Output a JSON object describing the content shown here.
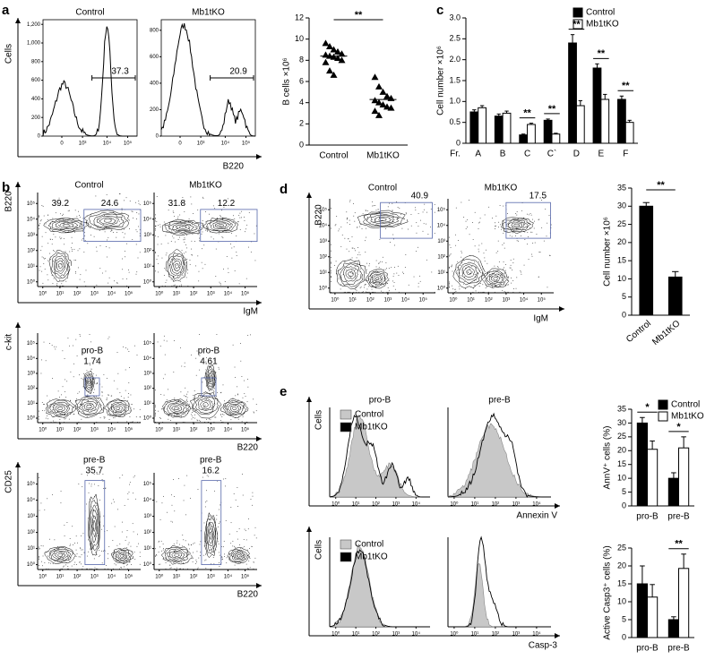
{
  "panel_labels": [
    "a",
    "b",
    "c",
    "d",
    "e"
  ],
  "flow": {
    "log_ticks": [
      {
        "value": 1,
        "label": "10⁰"
      },
      {
        "value": 10,
        "label": "10¹"
      },
      {
        "value": 100,
        "label": "10²"
      },
      {
        "value": 1000,
        "label": "10³"
      },
      {
        "value": 10000,
        "label": "10⁴"
      },
      {
        "value": 100000,
        "label": "10⁵"
      }
    ],
    "a": {
      "x_label": "B220",
      "y_label": "Cells",
      "xticks": [
        0,
        {
          "value": 1000,
          "label": "10³"
        },
        {
          "value": 10000,
          "label": "10⁴"
        },
        {
          "value": 100000,
          "label": "10⁵"
        }
      ],
      "plots": [
        {
          "title": "Control",
          "ylim": [
            0,
            1250
          ],
          "yticks": [
            0,
            200,
            400,
            600,
            800,
            {
              "value": 1000,
              "label": "1,000"
            },
            {
              "value": 1200,
              "label": "1,200"
            }
          ],
          "gate": 37.3
        },
        {
          "title": "Mb1tKO",
          "ylim": [
            0,
            880
          ],
          "yticks": [
            0,
            200,
            400,
            600,
            800
          ],
          "gate": 20.9
        }
      ]
    },
    "b": {
      "rows": [
        {
          "y_label": "B220",
          "x_label": "IgM",
          "plots": [
            {
              "title": "Control",
              "gates": [
                39.2,
                24.6
              ]
            },
            {
              "title": "Mb1tKO",
              "gates": [
                31.8,
                12.2
              ]
            }
          ]
        },
        {
          "y_label": "c-kit",
          "x_label": "B220",
          "plots": [
            {
              "gate_name": "pro-B",
              "gates": [
                1.74
              ]
            },
            {
              "gate_name": "pro-B",
              "gates": [
                4.61
              ]
            }
          ]
        },
        {
          "y_label": "CD25",
          "x_label": "B220",
          "plots": [
            {
              "gate_name": "pre-B",
              "gates": [
                35.7
              ]
            },
            {
              "gate_name": "pre-B",
              "gates": [
                16.2
              ]
            }
          ]
        }
      ]
    },
    "d": {
      "y_label": "B220",
      "x_label": "IgM",
      "plots": [
        {
          "title": "Control",
          "gates": [
            40.9
          ]
        },
        {
          "title": "Mb1tKO",
          "gates": [
            17.5
          ]
        }
      ]
    },
    "e": {
      "titles": [
        "pro-B",
        "pre-B"
      ],
      "rows": [
        {
          "y_label": "Cells",
          "x_label": "Annexin V",
          "legend": [
            "Control",
            "Mb1tKO"
          ]
        },
        {
          "y_label": "Cells",
          "x_label": "Casp-3",
          "legend": [
            "Control",
            "Mb1tKO"
          ]
        }
      ]
    }
  },
  "chart_data": [
    {
      "type": "strip",
      "y_label": "B cells ×10⁶",
      "categories": [
        "Control",
        "Mb1tKO"
      ],
      "ylim": [
        0,
        12
      ],
      "yticks": [
        0,
        2,
        4,
        6,
        8,
        10,
        12
      ],
      "series": [
        {
          "name": "Control",
          "color": "#000000",
          "mean": 8.4,
          "values": [
            9.6,
            9.3,
            9.0,
            8.8,
            8.6,
            8.5,
            8.4,
            8.3,
            8.2,
            8.0,
            7.8,
            7.0,
            6.6
          ]
        },
        {
          "name": "Mb1tKO",
          "color": "#000000",
          "mean": 4.3,
          "values": [
            6.4,
            5.5,
            5.0,
            4.6,
            4.4,
            4.2,
            4.0,
            3.8,
            3.6,
            3.5,
            3.2,
            2.8
          ]
        }
      ],
      "annotations": [
        {
          "text": "**",
          "categories": [
            "Control",
            "Mb1tKO"
          ]
        }
      ]
    },
    {
      "type": "bar",
      "y_label": "Cell number ×10⁶",
      "category_label": "Fr.",
      "categories": [
        "A",
        "B",
        "C",
        "C`",
        "D",
        "E",
        "F"
      ],
      "ylim": [
        0,
        3
      ],
      "yticks": [
        0,
        0.5,
        {
          "value": 1,
          "label": "1.0"
        },
        1.5,
        {
          "value": 2,
          "label": "2.0"
        },
        2.5,
        {
          "value": 3,
          "label": "3.0"
        }
      ],
      "legend_corner": "top-right",
      "series": [
        {
          "name": "Control",
          "color": "#000000",
          "values": [
            0.75,
            0.65,
            0.2,
            0.55,
            2.4,
            1.8,
            1.05
          ],
          "errors": [
            0.05,
            0.05,
            0.02,
            0.03,
            0.2,
            0.1,
            0.08
          ]
        },
        {
          "name": "Mb1tKO",
          "color": "#ffffff",
          "values": [
            0.85,
            0.72,
            0.45,
            0.22,
            0.9,
            1.05,
            0.5
          ],
          "errors": [
            0.05,
            0.05,
            0.03,
            0.02,
            0.12,
            0.12,
            0.05
          ]
        }
      ],
      "annotations": [
        {
          "text": "**",
          "categories": [
            "C"
          ]
        },
        {
          "text": "**",
          "categories": [
            "C`"
          ]
        },
        {
          "text": "**",
          "categories": [
            "D"
          ]
        },
        {
          "text": "**",
          "categories": [
            "E"
          ]
        },
        {
          "text": "**",
          "categories": [
            "F"
          ]
        }
      ]
    },
    {
      "type": "bar",
      "y_label": "Cell number ×10⁶",
      "categories": [
        "Control",
        "Mb1tKO"
      ],
      "ylim": [
        0,
        35
      ],
      "yticks": [
        0,
        5,
        10,
        15,
        20,
        25,
        30,
        35
      ],
      "series": [
        {
          "name": "Cell number",
          "color": "#000000",
          "values": [
            30,
            10.5
          ],
          "errors": [
            1,
            1.5
          ]
        }
      ],
      "annotations": [
        {
          "text": "**",
          "categories": [
            "Control",
            "Mb1tKO"
          ]
        }
      ]
    },
    {
      "type": "bar",
      "y_label": "AnnV⁺ cells (%)",
      "categories": [
        "pro-B",
        "pre-B"
      ],
      "ylim": [
        0,
        35
      ],
      "yticks": [
        0,
        5,
        10,
        15,
        20,
        25,
        30,
        35
      ],
      "legend_corner": "top-right",
      "series": [
        {
          "name": "Control",
          "color": "#000000",
          "values": [
            30,
            10
          ],
          "errors": [
            2,
            2
          ]
        },
        {
          "name": "Mb1tKO",
          "color": "#ffffff",
          "values": [
            20.5,
            21
          ],
          "errors": [
            3,
            4
          ]
        }
      ],
      "annotations": [
        {
          "text": "*",
          "categories": [
            "pro-B"
          ]
        },
        {
          "text": "*",
          "categories": [
            "pre-B"
          ]
        }
      ]
    },
    {
      "type": "bar",
      "y_label": "Active Casp3⁺ cells (%)",
      "categories": [
        "pro-B",
        "pre-B"
      ],
      "ylim": [
        0,
        25
      ],
      "yticks": [
        0,
        5,
        10,
        15,
        20,
        25
      ],
      "series": [
        {
          "name": "Control",
          "color": "#000000",
          "values": [
            15,
            5
          ],
          "errors": [
            5,
            0.8
          ]
        },
        {
          "name": "Mb1tKO",
          "color": "#ffffff",
          "values": [
            11.3,
            19.3
          ],
          "errors": [
            3.5,
            4
          ]
        }
      ],
      "annotations": [
        {
          "text": "**",
          "categories": [
            "pre-B"
          ]
        }
      ]
    }
  ]
}
